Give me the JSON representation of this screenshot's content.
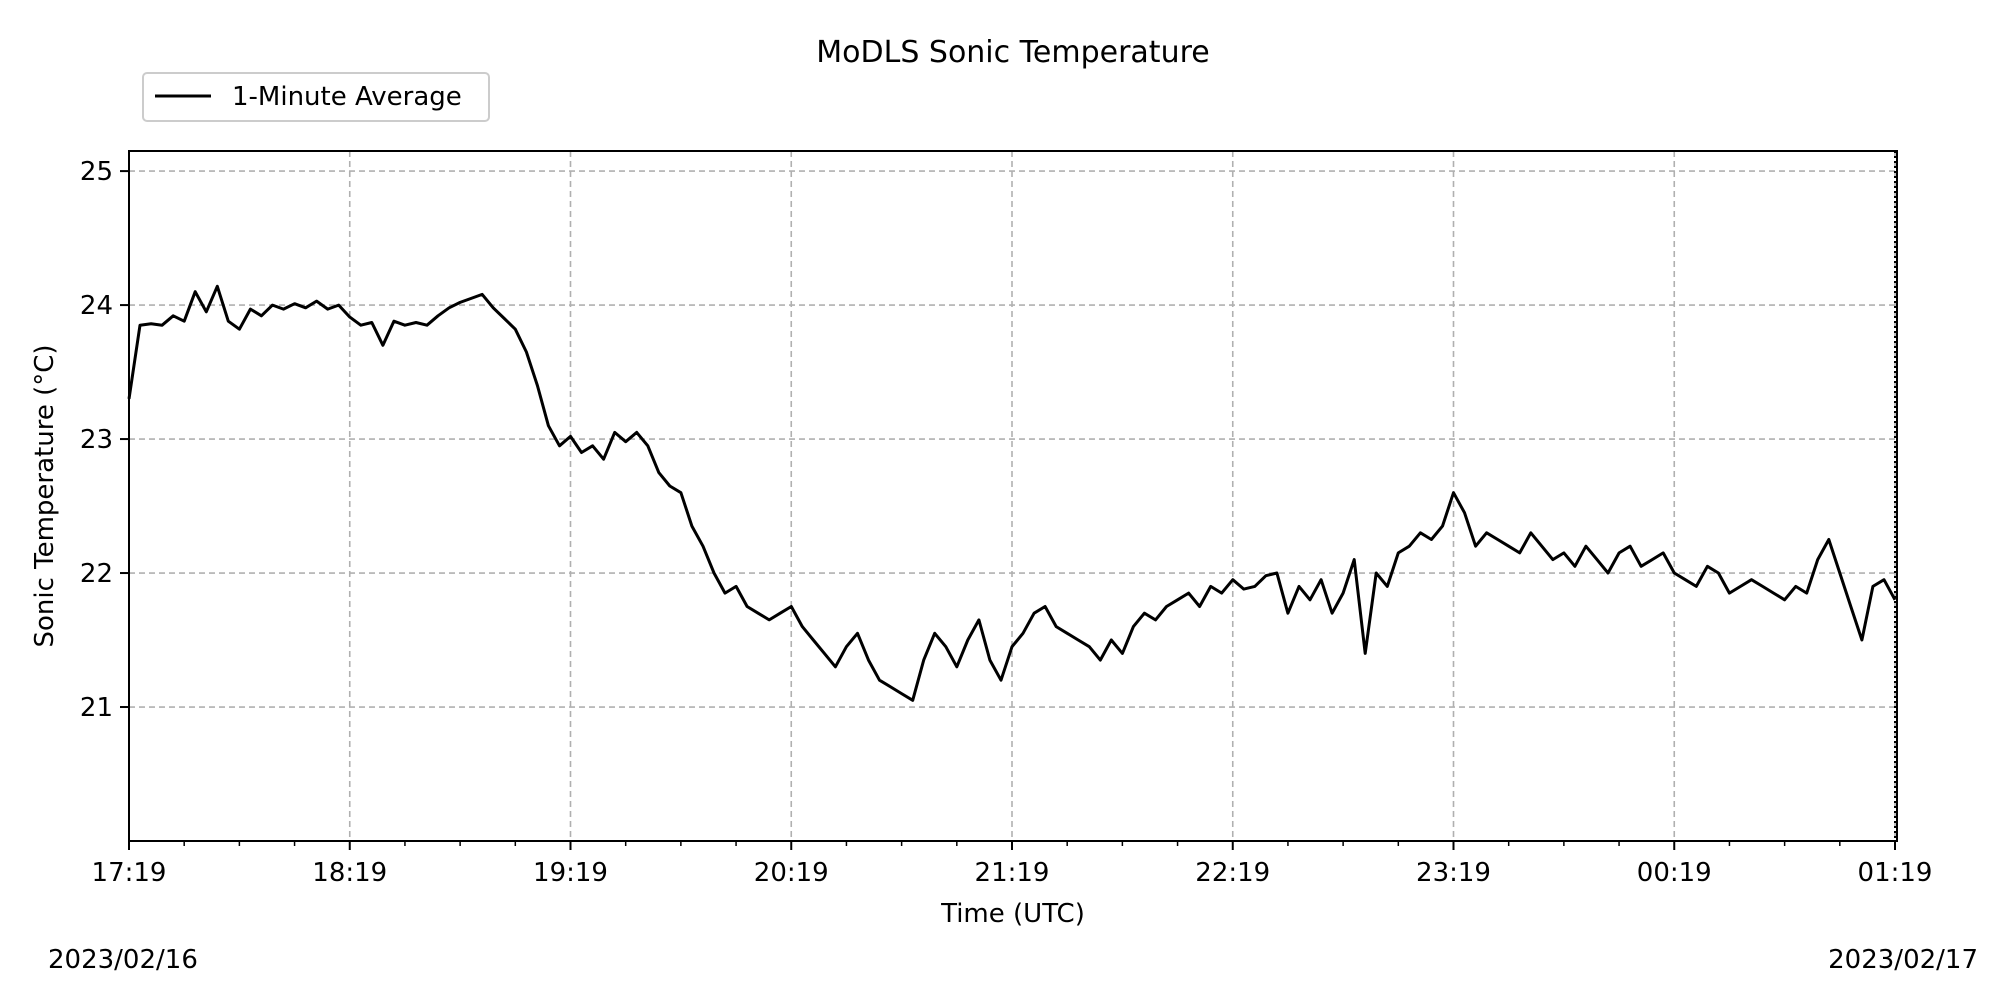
{
  "chart_data": {
    "type": "line",
    "title": "MoDLS Sonic Temperature",
    "xlabel": "Time (UTC)",
    "ylabel": "Sonic Temperature (°C)",
    "start_date_label": "2023/02/16",
    "end_date_label": "2023/02/17",
    "x_ticks": [
      "17:19",
      "18:19",
      "19:19",
      "20:19",
      "21:19",
      "22:19",
      "23:19",
      "00:19",
      "01:19"
    ],
    "y_ticks": [
      21,
      22,
      23,
      24,
      25
    ],
    "ylim": [
      20.0,
      25.15
    ],
    "xlim": [
      "2023-02-16 17:19",
      "2023-02-17 01:19"
    ],
    "grid": true,
    "legend_position": "upper left, above axes",
    "line_color": "#000000",
    "series": [
      {
        "name": "1-Minute Average",
        "x": [
          "17:19",
          "17:22",
          "17:25",
          "17:28",
          "17:31",
          "17:34",
          "17:37",
          "17:40",
          "17:43",
          "17:46",
          "17:49",
          "17:52",
          "17:55",
          "17:58",
          "18:01",
          "18:04",
          "18:07",
          "18:10",
          "18:13",
          "18:16",
          "18:19",
          "18:22",
          "18:25",
          "18:28",
          "18:31",
          "18:34",
          "18:37",
          "18:40",
          "18:43",
          "18:46",
          "18:49",
          "18:52",
          "18:55",
          "18:58",
          "19:01",
          "19:04",
          "19:07",
          "19:10",
          "19:13",
          "19:16",
          "19:19",
          "19:22",
          "19:25",
          "19:28",
          "19:31",
          "19:34",
          "19:37",
          "19:40",
          "19:43",
          "19:46",
          "19:49",
          "19:52",
          "19:55",
          "19:58",
          "20:01",
          "20:04",
          "20:07",
          "20:10",
          "20:13",
          "20:16",
          "20:19",
          "20:22",
          "20:25",
          "20:28",
          "20:31",
          "20:34",
          "20:37",
          "20:40",
          "20:43",
          "20:46",
          "20:49",
          "20:52",
          "20:55",
          "20:58",
          "21:01",
          "21:04",
          "21:07",
          "21:10",
          "21:13",
          "21:16",
          "21:19",
          "21:22",
          "21:25",
          "21:28",
          "21:31",
          "21:34",
          "21:37",
          "21:40",
          "21:43",
          "21:46",
          "21:49",
          "21:52",
          "21:55",
          "21:58",
          "22:01",
          "22:04",
          "22:07",
          "22:10",
          "22:13",
          "22:16",
          "22:19",
          "22:22",
          "22:25",
          "22:28",
          "22:31",
          "22:34",
          "22:37",
          "22:40",
          "22:43",
          "22:46",
          "22:49",
          "22:52",
          "22:55",
          "22:58",
          "23:01",
          "23:04",
          "23:07",
          "23:10",
          "23:13",
          "23:16",
          "23:19",
          "23:22",
          "23:25",
          "23:28",
          "23:31",
          "23:34",
          "23:37",
          "23:40",
          "23:43",
          "23:46",
          "23:49",
          "23:52",
          "23:55",
          "23:58",
          "00:01",
          "00:04",
          "00:07",
          "00:10",
          "00:13",
          "00:16",
          "00:19",
          "00:22",
          "00:25",
          "00:28",
          "00:31",
          "00:34",
          "00:37",
          "00:40",
          "00:43",
          "00:46",
          "00:49",
          "00:52",
          "00:55",
          "00:58",
          "01:01",
          "01:04",
          "01:07",
          "01:10",
          "01:13",
          "01:16",
          "01:19"
        ],
        "values": [
          23.3,
          23.85,
          23.86,
          23.85,
          23.92,
          23.88,
          24.1,
          23.95,
          24.14,
          23.88,
          23.82,
          23.97,
          23.92,
          24.0,
          23.97,
          24.01,
          23.98,
          24.03,
          23.97,
          24.0,
          23.91,
          23.85,
          23.87,
          23.7,
          23.88,
          23.85,
          23.87,
          23.85,
          23.92,
          23.98,
          24.02,
          24.05,
          24.08,
          23.98,
          23.9,
          23.82,
          23.65,
          23.4,
          23.1,
          22.95,
          23.02,
          22.9,
          22.95,
          22.85,
          23.05,
          22.98,
          23.05,
          22.95,
          22.75,
          22.65,
          22.6,
          22.35,
          22.2,
          22.0,
          21.85,
          21.9,
          21.75,
          21.7,
          21.65,
          21.7,
          21.75,
          21.6,
          21.5,
          21.4,
          21.3,
          21.45,
          21.55,
          21.35,
          21.2,
          21.15,
          21.1,
          21.05,
          21.35,
          21.55,
          21.45,
          21.3,
          21.5,
          21.65,
          21.35,
          21.2,
          21.45,
          21.55,
          21.7,
          21.75,
          21.6,
          21.55,
          21.5,
          21.45,
          21.35,
          21.5,
          21.4,
          21.6,
          21.7,
          21.65,
          21.75,
          21.8,
          21.85,
          21.75,
          21.9,
          21.85,
          21.95,
          21.88,
          21.9,
          21.98,
          22.0,
          21.7,
          21.9,
          21.8,
          21.95,
          21.7,
          21.85,
          22.1,
          21.4,
          22.0,
          21.9,
          22.15,
          22.2,
          22.3,
          22.25,
          22.35,
          22.6,
          22.45,
          22.2,
          22.3,
          22.25,
          22.2,
          22.15,
          22.3,
          22.2,
          22.1,
          22.15,
          22.05,
          22.2,
          22.1,
          22.0,
          22.15,
          22.2,
          22.05,
          22.1,
          22.15,
          22.0,
          21.95,
          21.9,
          22.05,
          22.0,
          21.85,
          21.9,
          21.95,
          21.9,
          21.85,
          21.8,
          21.9,
          21.85,
          22.1,
          22.25,
          22.0,
          21.75,
          21.5,
          21.9,
          21.95,
          21.8
        ]
      }
    ]
  }
}
